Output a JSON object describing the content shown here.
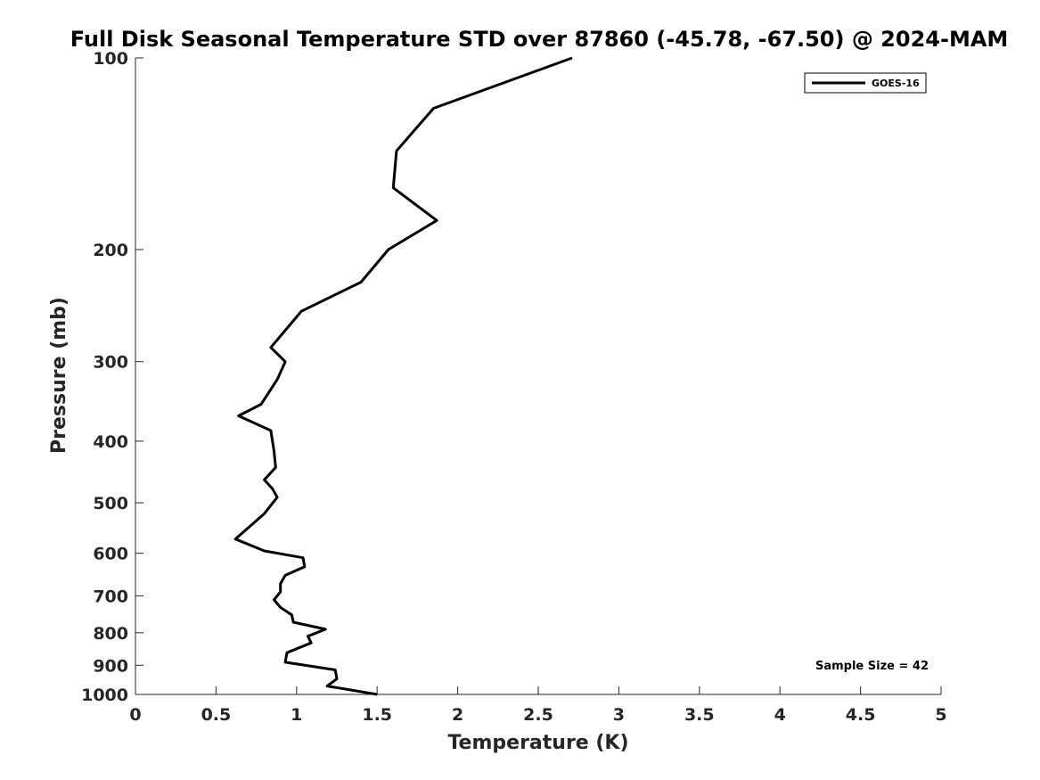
{
  "chart_data": {
    "type": "line",
    "title": "Full Disk Seasonal Temperature STD over 87860 (-45.78, -67.50) @ 2024-MAM",
    "xlabel": "Temperature (K)",
    "ylabel": "Pressure (mb)",
    "xlim": [
      0,
      5
    ],
    "ylim": [
      100,
      1000
    ],
    "y_scale": "log",
    "y_reversed": true,
    "grid": false,
    "legend_position": "top-right",
    "x_ticks": [
      0,
      0.5,
      1,
      1.5,
      2,
      2.5,
      3,
      3.5,
      4,
      4.5,
      5
    ],
    "x_tick_labels": [
      "0",
      "0.5",
      "1",
      "1.5",
      "2",
      "2.5",
      "3",
      "3.5",
      "4",
      "4.5",
      "5"
    ],
    "y_ticks": [
      100,
      200,
      300,
      400,
      500,
      600,
      700,
      800,
      900,
      1000
    ],
    "y_tick_labels": [
      "100",
      "200",
      "300",
      "400",
      "500",
      "600",
      "700",
      "800",
      "900",
      "1000"
    ],
    "series": [
      {
        "name": "GOES-16",
        "color": "#000000",
        "points": [
          [
            2.71,
            100
          ],
          [
            1.85,
            120
          ],
          [
            1.62,
            140
          ],
          [
            1.6,
            160
          ],
          [
            1.87,
            180
          ],
          [
            1.57,
            200
          ],
          [
            1.4,
            225
          ],
          [
            1.03,
            250
          ],
          [
            0.84,
            285
          ],
          [
            0.93,
            300
          ],
          [
            0.88,
            320
          ],
          [
            0.78,
            350
          ],
          [
            0.64,
            365
          ],
          [
            0.84,
            385
          ],
          [
            0.86,
            415
          ],
          [
            0.87,
            440
          ],
          [
            0.8,
            460
          ],
          [
            0.85,
            475
          ],
          [
            0.88,
            490
          ],
          [
            0.8,
            520
          ],
          [
            0.69,
            550
          ],
          [
            0.62,
            570
          ],
          [
            0.8,
            595
          ],
          [
            1.04,
            610
          ],
          [
            1.05,
            630
          ],
          [
            0.93,
            650
          ],
          [
            0.9,
            670
          ],
          [
            0.9,
            690
          ],
          [
            0.86,
            710
          ],
          [
            0.9,
            730
          ],
          [
            0.97,
            750
          ],
          [
            0.98,
            770
          ],
          [
            1.18,
            790
          ],
          [
            1.07,
            810
          ],
          [
            1.09,
            830
          ],
          [
            0.94,
            860
          ],
          [
            0.93,
            890
          ],
          [
            1.24,
            915
          ],
          [
            1.25,
            945
          ],
          [
            1.19,
            970
          ],
          [
            1.5,
            1000
          ]
        ]
      }
    ],
    "annotation": "Sample Size = 42"
  }
}
